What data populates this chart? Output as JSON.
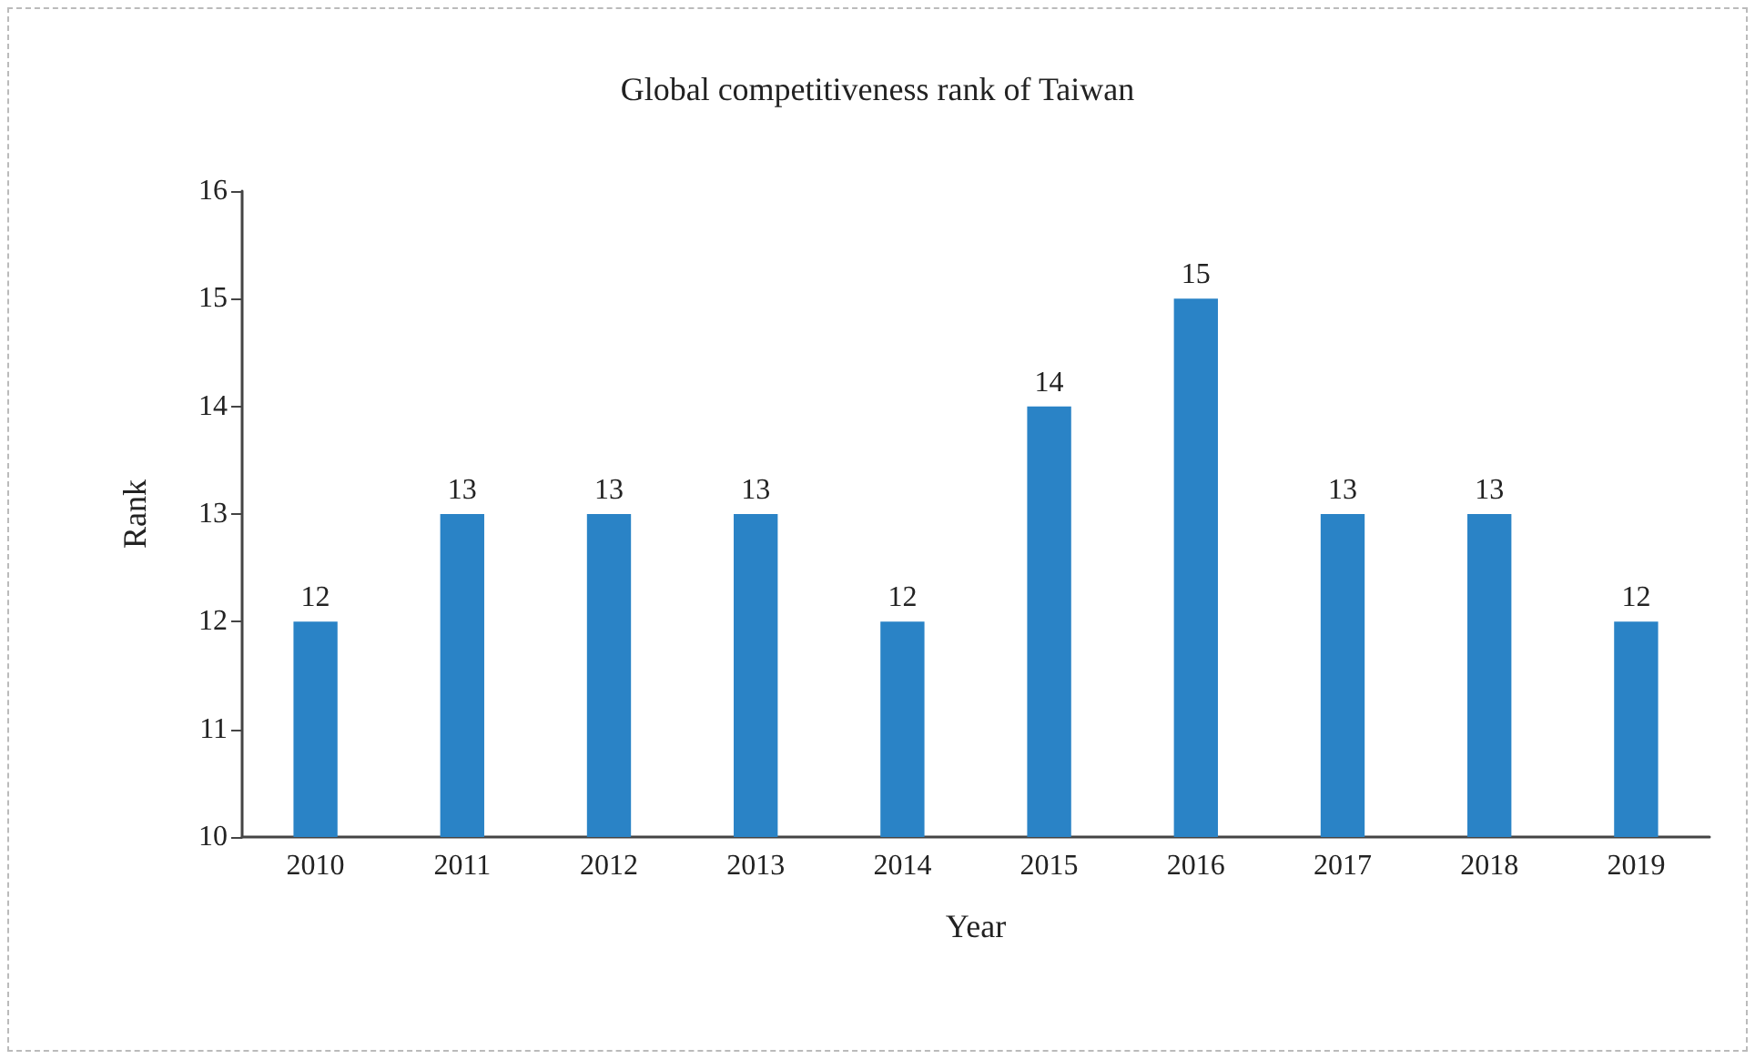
{
  "chart_data": {
    "type": "bar",
    "title": "Global competitiveness rank of Taiwan",
    "xlabel": "Year",
    "ylabel": "Rank",
    "categories": [
      "2010",
      "2011",
      "2012",
      "2013",
      "2014",
      "2015",
      "2016",
      "2017",
      "2018",
      "2019"
    ],
    "values": [
      12,
      13,
      13,
      13,
      12,
      14,
      15,
      13,
      13,
      12
    ],
    "color": "#2a83c6",
    "ylim": [
      10,
      16
    ],
    "yticks": [
      10,
      11,
      12,
      13,
      14,
      15,
      16
    ],
    "data_labels": true,
    "grid": false
  }
}
